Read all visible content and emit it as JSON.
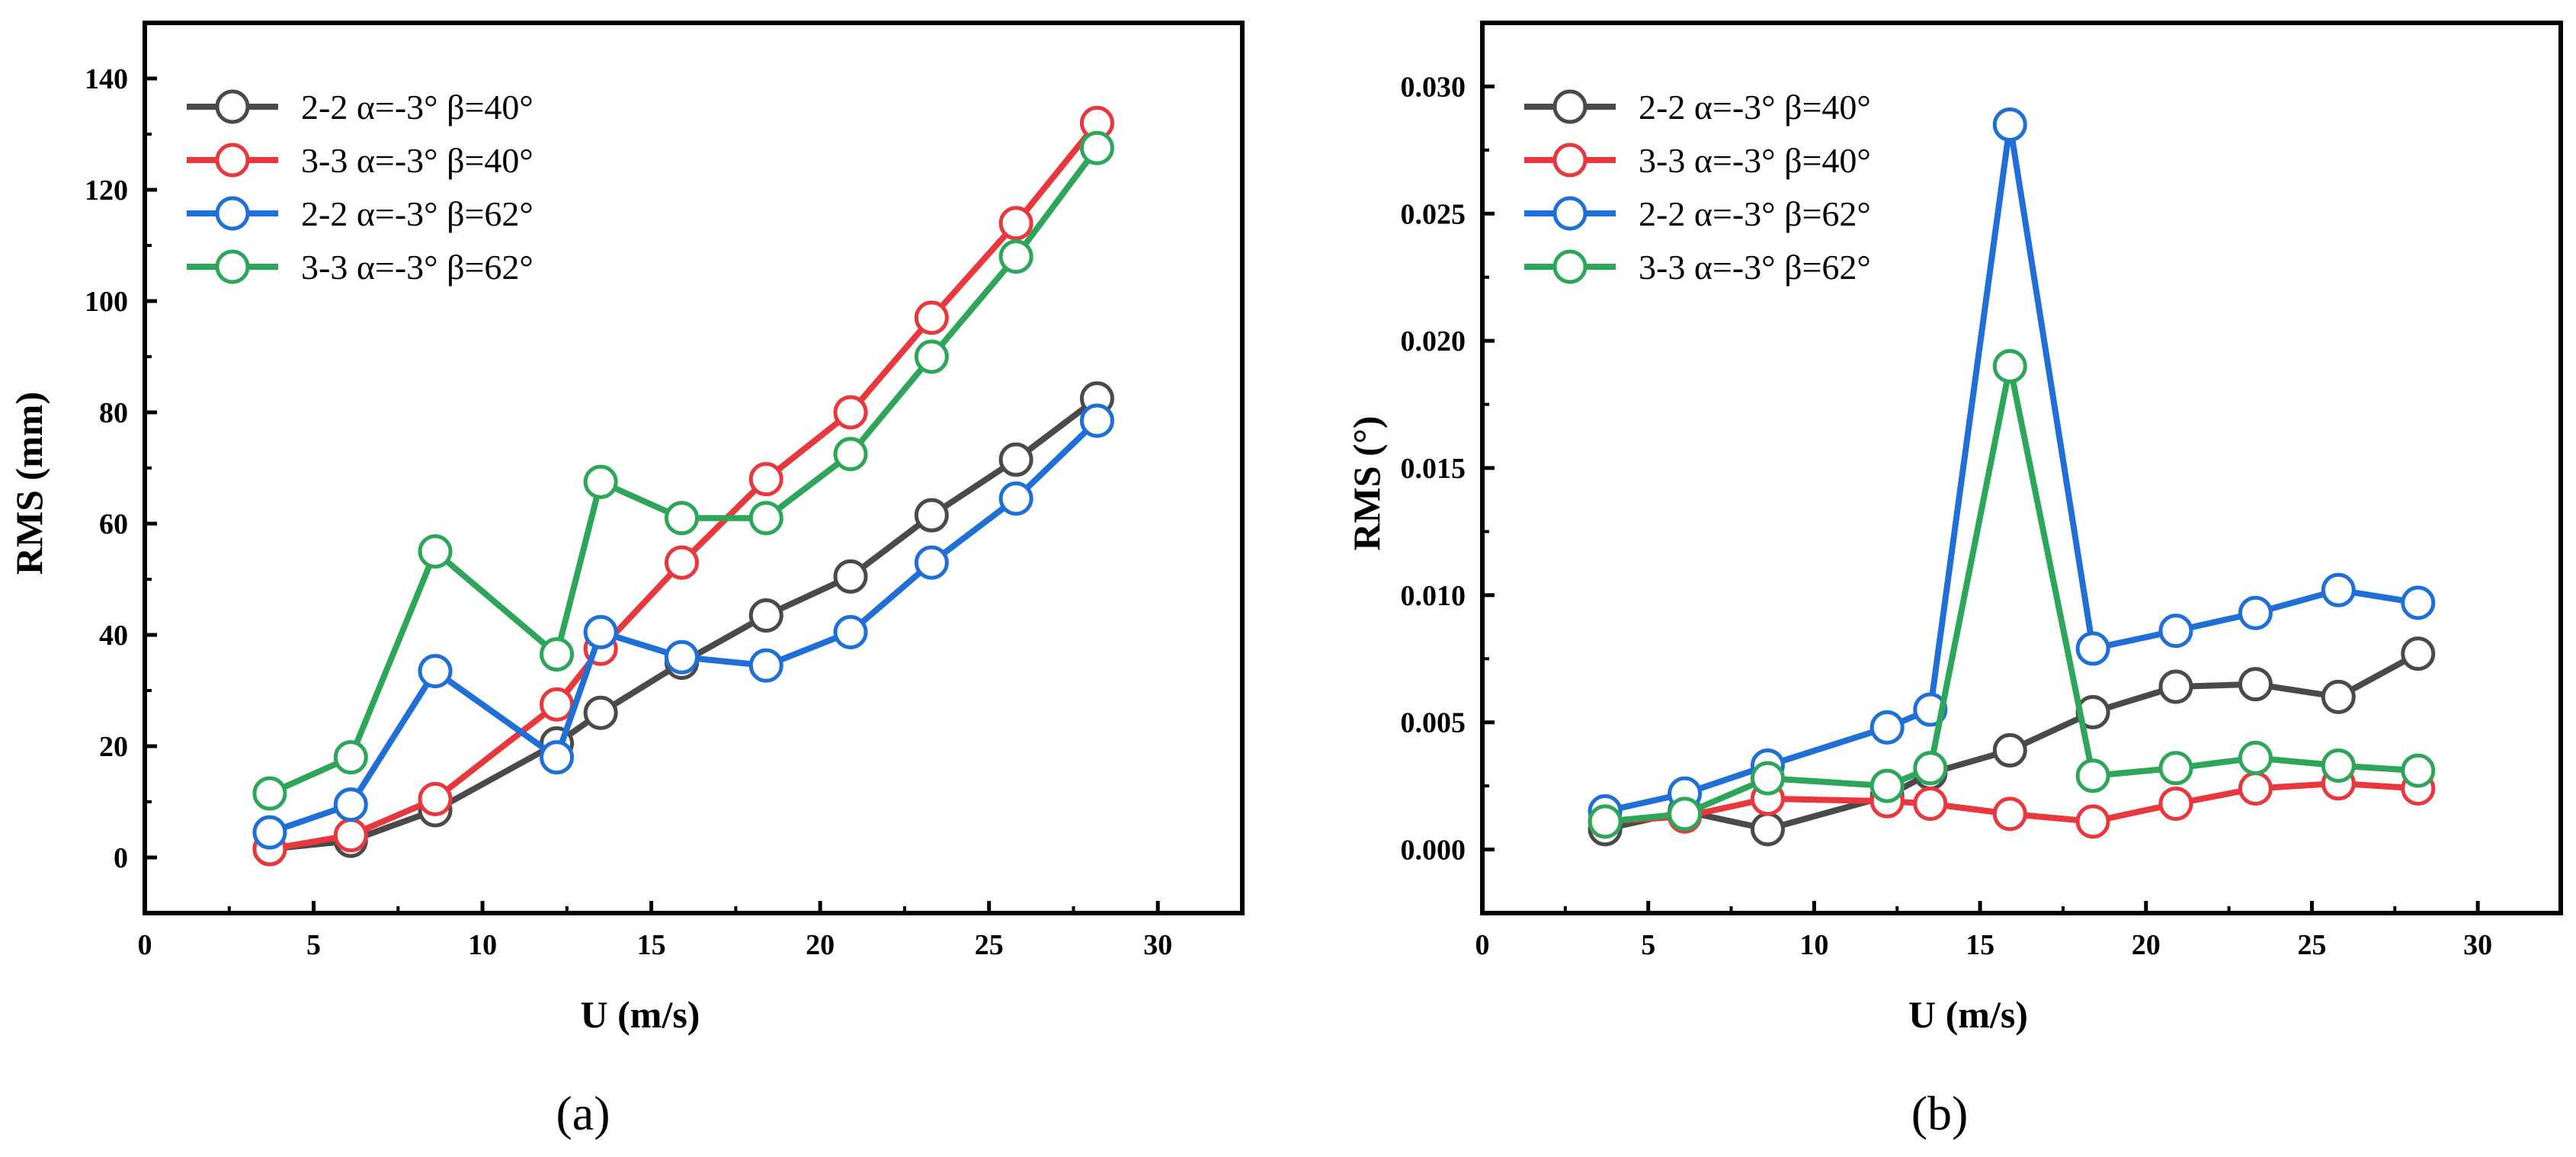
{
  "chart_data": [
    {
      "type": "line",
      "panel_label": "(a)",
      "xlabel": "U (m/s)",
      "ylabel": "RMS (mm)",
      "xlim": [
        0,
        32.5
      ],
      "ylim": [
        -10,
        150
      ],
      "xticks": [
        0,
        5,
        10,
        15,
        20,
        25,
        30
      ],
      "xtick_labels": [
        "0",
        "5",
        "10",
        "15",
        "20",
        "25",
        "30"
      ],
      "yticks": [
        0,
        20,
        40,
        60,
        80,
        100,
        120,
        140
      ],
      "ytick_labels": [
        "0",
        "20",
        "40",
        "60",
        "80",
        "100",
        "120",
        "140"
      ],
      "x": [
        3.7,
        6.1,
        8.6,
        12.2,
        13.5,
        15.9,
        18.4,
        20.9,
        23.3,
        25.8,
        28.2
      ],
      "legend_position": "top-left",
      "series": [
        {
          "name": "2-2 α=-3° β=40°",
          "color": "#4a4a4a",
          "values": [
            1.5,
            3,
            8.5,
            20.5,
            26,
            35,
            43.5,
            50.5,
            61.5,
            71.5,
            82.5
          ]
        },
        {
          "name": "3-3 α=-3° β=40°",
          "color": "#e8383d",
          "values": [
            1.5,
            4,
            10.5,
            27.5,
            37.5,
            53,
            68,
            80,
            97,
            114,
            132
          ]
        },
        {
          "name": "2-2 α=-3° β=62°",
          "color": "#1f6fd6",
          "values": [
            4.5,
            9.5,
            33.5,
            18,
            40.5,
            36,
            34.5,
            40.5,
            53,
            64.5,
            78.5
          ]
        },
        {
          "name": "3-3 α=-3° β=62°",
          "color": "#2ea65a",
          "values": [
            11.5,
            18,
            55,
            36.5,
            67.5,
            61,
            61,
            72.5,
            90,
            108,
            127.5
          ]
        }
      ]
    },
    {
      "type": "line",
      "panel_label": "(b)",
      "xlabel": "U (m/s)",
      "ylabel": "RMS (°)",
      "xlim": [
        0,
        32.5
      ],
      "ylim": [
        -0.0025,
        0.0325
      ],
      "xticks": [
        0,
        5,
        10,
        15,
        20,
        25,
        30
      ],
      "xtick_labels": [
        "0",
        "5",
        "10",
        "15",
        "20",
        "25",
        "30"
      ],
      "yticks": [
        0,
        0.005,
        0.01,
        0.015,
        0.02,
        0.025,
        0.03
      ],
      "ytick_labels": [
        "0.000",
        "0.005",
        "0.010",
        "0.015",
        "0.020",
        "0.025",
        "0.030"
      ],
      "x": [
        3.7,
        6.1,
        8.6,
        12.2,
        13.5,
        15.9,
        18.4,
        20.9,
        23.3,
        25.8,
        28.2
      ],
      "legend_position": "top-left",
      "series": [
        {
          "name": "2-2 α=-3° β=40°",
          "color": "#4a4a4a",
          "values": [
            0.0008,
            0.0015,
            0.0008,
            0.0021,
            0.003,
            0.0039,
            0.0054,
            0.0064,
            0.0065,
            0.006,
            0.0077
          ]
        },
        {
          "name": "3-3 α=-3° β=40°",
          "color": "#e8383d",
          "values": [
            0.0011,
            0.0013,
            0.002,
            0.0019,
            0.0018,
            0.0014,
            0.0011,
            0.0018,
            0.0024,
            0.0026,
            0.0024
          ]
        },
        {
          "name": "2-2 α=-3° β=62°",
          "color": "#1f6fd6",
          "values": [
            0.0015,
            0.0022,
            0.0033,
            0.0048,
            0.0055,
            0.0285,
            0.0079,
            0.0086,
            0.0093,
            0.0102,
            0.0097
          ]
        },
        {
          "name": "3-3 α=-3° β=62°",
          "color": "#2ea65a",
          "values": [
            0.0011,
            0.0014,
            0.0028,
            0.0025,
            0.0032,
            0.019,
            0.0029,
            0.0032,
            0.0036,
            0.0033,
            0.0031
          ]
        }
      ]
    }
  ]
}
